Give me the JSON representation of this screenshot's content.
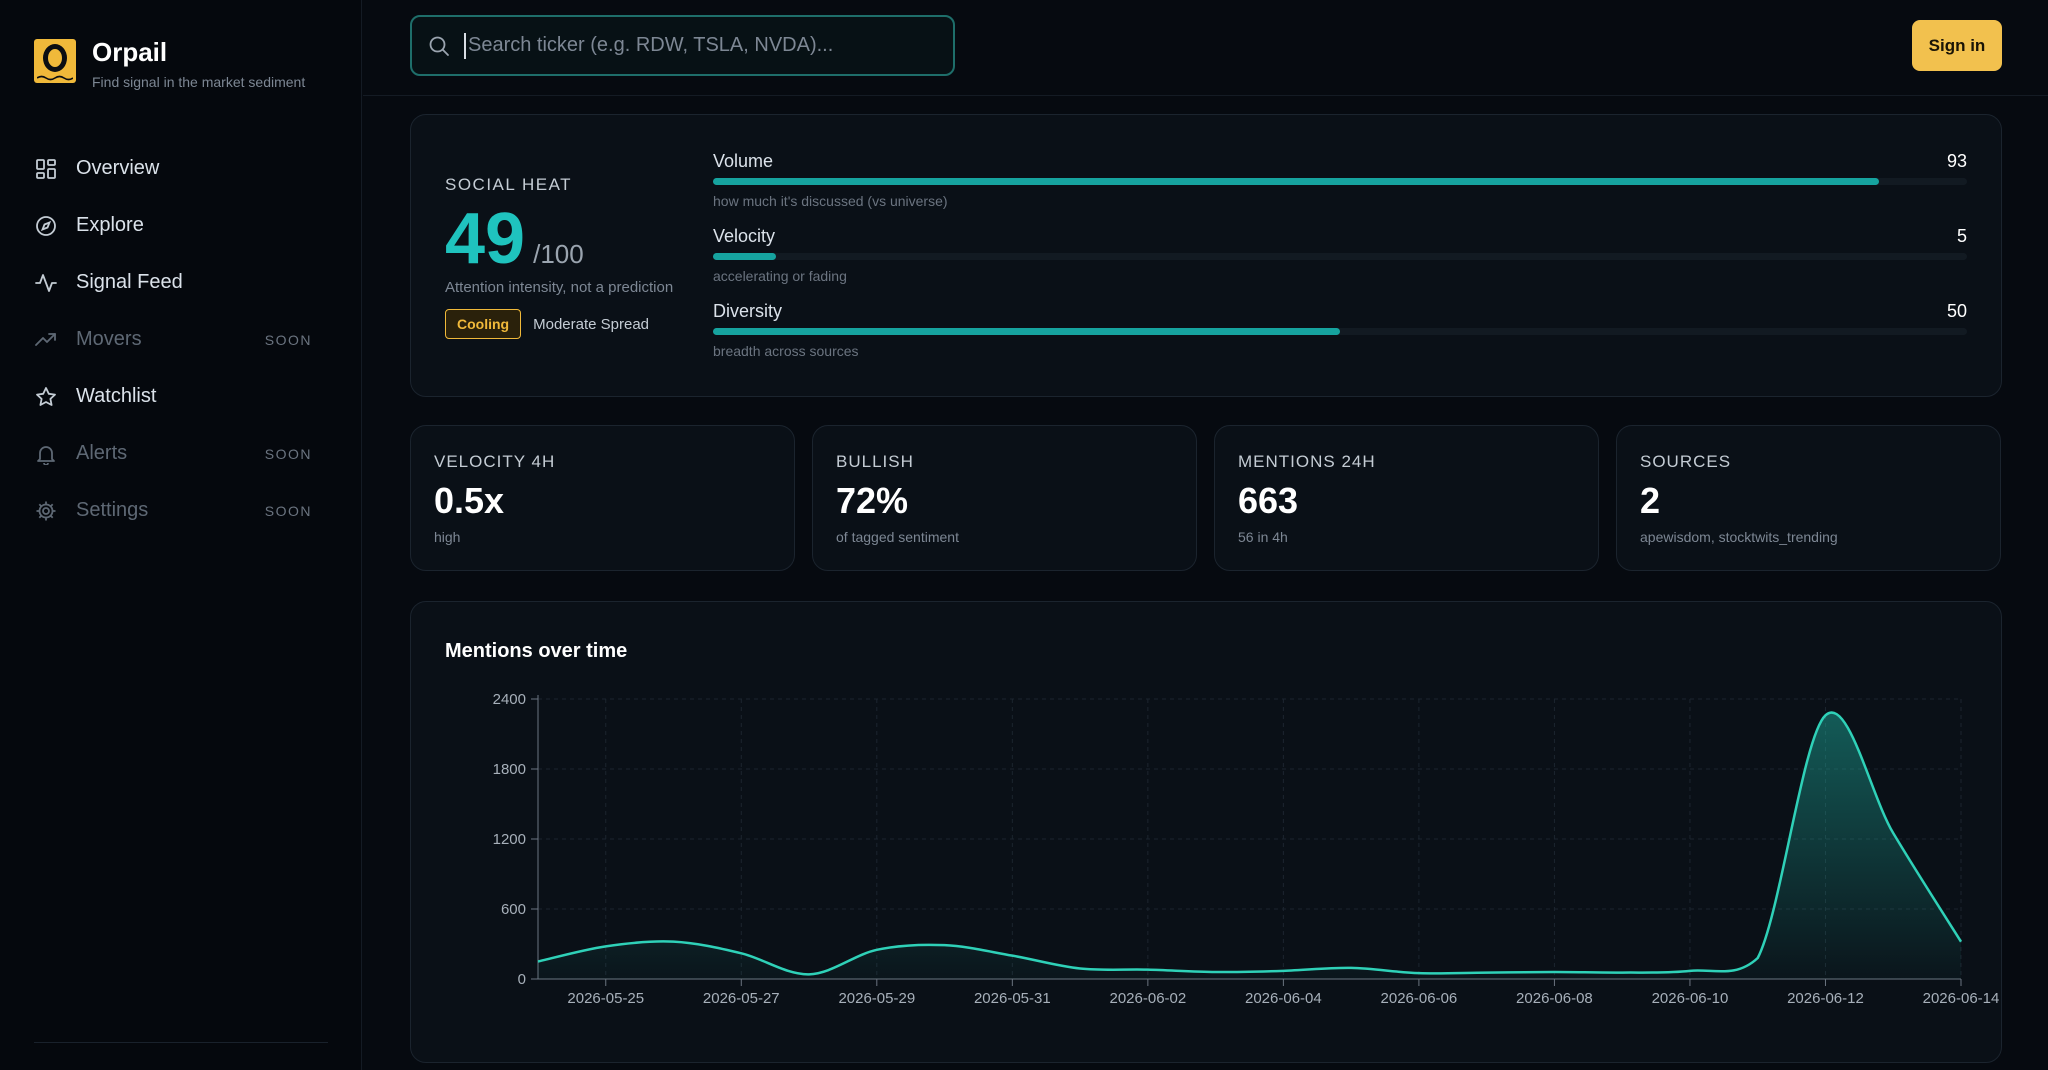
{
  "app": {
    "name": "Orpail",
    "tagline": "Find signal in the market sediment"
  },
  "sidebar": {
    "items": [
      {
        "label": "Overview",
        "icon": "grid-icon",
        "soon": ""
      },
      {
        "label": "Explore",
        "icon": "compass-icon",
        "soon": ""
      },
      {
        "label": "Signal Feed",
        "icon": "activity-icon",
        "soon": ""
      },
      {
        "label": "Movers",
        "icon": "trending-up-icon",
        "soon": "SOON"
      },
      {
        "label": "Watchlist",
        "icon": "star-icon",
        "soon": ""
      },
      {
        "label": "Alerts",
        "icon": "bell-icon",
        "soon": "SOON"
      },
      {
        "label": "Settings",
        "icon": "gear-icon",
        "soon": "SOON"
      }
    ]
  },
  "topbar": {
    "search_placeholder": "Search ticker (e.g. RDW, TSLA, NVDA)...",
    "search_value": "",
    "signin_label": "Sign in"
  },
  "heat": {
    "label": "SOCIAL HEAT",
    "score": "49",
    "max": "/100",
    "subtitle": "Attention intensity, not a prediction",
    "badge": "Cooling",
    "spread": "Moderate Spread",
    "metrics": [
      {
        "name": "Volume",
        "value": "93",
        "fraction": 0.93,
        "desc": "how much it's discussed (vs universe)"
      },
      {
        "name": "Velocity",
        "value": "5",
        "fraction": 0.05,
        "desc": "accelerating or fading"
      },
      {
        "name": "Diversity",
        "value": "50",
        "fraction": 0.5,
        "desc": "breadth across sources"
      }
    ],
    "accent_color": "#1fc3be",
    "badge_color": "#f0b93a"
  },
  "stats": [
    {
      "label": "VELOCITY 4H",
      "value": "0.5x",
      "sub": "high"
    },
    {
      "label": "BULLISH",
      "value": "72%",
      "sub": "of tagged sentiment"
    },
    {
      "label": "MENTIONS 24H",
      "value": "663",
      "sub": "56 in 4h"
    },
    {
      "label": "SOURCES",
      "value": "2",
      "sub": "apewisdom, stocktwits_trending"
    }
  ],
  "chart_data": {
    "type": "area",
    "title": "Mentions over time",
    "xlabel": "",
    "ylabel": "",
    "ylim": [
      0,
      2400
    ],
    "yticks": [
      "0",
      "600",
      "1200",
      "1800",
      "2400"
    ],
    "xtick_labels": [
      "2026-05-25",
      "2026-05-27",
      "2026-05-29",
      "2026-05-31",
      "2026-06-02",
      "2026-06-04",
      "2026-06-06",
      "2026-06-08",
      "2026-06-10",
      "2026-06-12",
      "2026-06-14"
    ],
    "x_range": [
      "2026-05-24",
      "2026-06-14"
    ],
    "grid": true,
    "legend": "none",
    "line_color": "#2fd1b8",
    "series": [
      {
        "points": [
          {
            "x": "2026-05-24",
            "y": 150
          },
          {
            "x": "2026-05-25",
            "y": 280
          },
          {
            "x": "2026-05-26",
            "y": 320
          },
          {
            "x": "2026-05-27",
            "y": 220
          },
          {
            "x": "2026-05-28",
            "y": 40
          },
          {
            "x": "2026-05-29",
            "y": 250
          },
          {
            "x": "2026-05-30",
            "y": 290
          },
          {
            "x": "2026-05-31",
            "y": 200
          },
          {
            "x": "2026-06-01",
            "y": 90
          },
          {
            "x": "2026-06-02",
            "y": 80
          },
          {
            "x": "2026-06-03",
            "y": 60
          },
          {
            "x": "2026-06-04",
            "y": 70
          },
          {
            "x": "2026-06-05",
            "y": 95
          },
          {
            "x": "2026-06-06",
            "y": 50
          },
          {
            "x": "2026-06-07",
            "y": 55
          },
          {
            "x": "2026-06-08",
            "y": 60
          },
          {
            "x": "2026-06-09",
            "y": 55
          },
          {
            "x": "2026-06-10",
            "y": 70
          },
          {
            "x": "2026-06-11",
            "y": 180
          },
          {
            "x": "2026-06-12",
            "y": 2260
          },
          {
            "x": "2026-06-13",
            "y": 1250
          },
          {
            "x": "2026-06-14",
            "y": 320
          }
        ]
      }
    ]
  }
}
